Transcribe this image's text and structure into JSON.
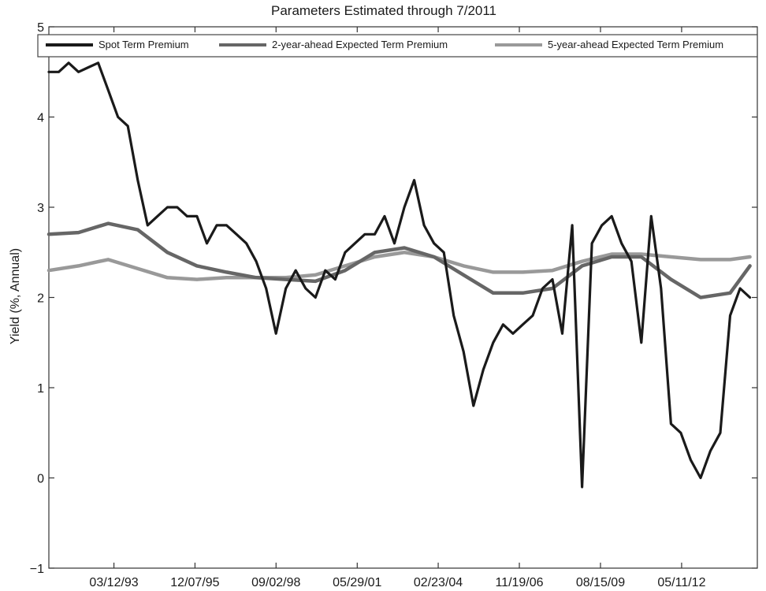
{
  "chart_data": {
    "type": "line",
    "title": "Parameters Estimated through 7/2011",
    "xlabel": "",
    "ylabel": "Yield (%, Annual)",
    "ylim": [
      -1,
      5
    ],
    "yticks": [
      -1,
      0,
      1,
      2,
      3,
      4,
      5
    ],
    "ytick_labels": [
      "−1",
      "0",
      "1",
      "2",
      "3",
      "4",
      "5"
    ],
    "xticks": [
      "03/12/93",
      "12/07/95",
      "09/02/98",
      "05/29/01",
      "02/23/04",
      "11/19/06",
      "08/15/09",
      "05/11/12"
    ],
    "xlim": [
      "01/1991",
      "12/2014"
    ],
    "grid": false,
    "legend_position": "top",
    "colors": {
      "spot": "#1a1a1a",
      "two_year": "#666666",
      "five_year": "#999999",
      "axis": "#333333"
    },
    "series": [
      {
        "name": "Spot Term Premium",
        "x": [
          "01/1991",
          "05/1991",
          "09/1991",
          "01/1992",
          "05/1992",
          "09/1992",
          "01/1993",
          "05/1993",
          "09/1993",
          "01/1994",
          "05/1994",
          "09/1994",
          "01/1995",
          "05/1995",
          "09/1995",
          "01/1996",
          "05/1996",
          "09/1996",
          "01/1997",
          "05/1997",
          "09/1997",
          "01/1998",
          "05/1998",
          "09/1998",
          "01/1999",
          "05/1999",
          "09/1999",
          "01/2000",
          "05/2000",
          "09/2000",
          "01/2001",
          "05/2001",
          "09/2001",
          "01/2002",
          "05/2002",
          "09/2002",
          "01/2003",
          "05/2003",
          "09/2003",
          "01/2004",
          "05/2004",
          "09/2004",
          "01/2005",
          "05/2005",
          "09/2005",
          "01/2006",
          "05/2006",
          "09/2006",
          "01/2007",
          "05/2007",
          "09/2007",
          "01/2008",
          "05/2008",
          "09/2008",
          "01/2009",
          "05/2009",
          "09/2009",
          "01/2010",
          "05/2010",
          "09/2010",
          "01/2011",
          "05/2011",
          "09/2011",
          "01/2012",
          "05/2012",
          "09/2012",
          "01/2013",
          "05/2013",
          "09/2013",
          "01/2014",
          "05/2014",
          "09/2014"
        ],
        "values": [
          4.5,
          4.5,
          4.6,
          4.5,
          4.55,
          4.6,
          4.3,
          4.0,
          3.9,
          3.3,
          2.8,
          2.9,
          3.0,
          3.0,
          2.9,
          2.9,
          2.6,
          2.8,
          2.8,
          2.7,
          2.6,
          2.4,
          2.1,
          1.6,
          2.1,
          2.3,
          2.1,
          2.0,
          2.3,
          2.2,
          2.5,
          2.6,
          2.7,
          2.7,
          2.9,
          2.6,
          3.0,
          3.3,
          2.8,
          2.6,
          2.5,
          1.8,
          1.4,
          0.8,
          1.2,
          1.5,
          1.7,
          1.6,
          1.7,
          1.8,
          2.1,
          2.2,
          1.6,
          2.8,
          -0.1,
          2.6,
          2.8,
          2.9,
          2.6,
          2.4,
          1.5,
          2.9,
          2.1,
          0.6,
          0.5,
          0.2,
          0.0,
          0.3,
          0.5,
          1.8,
          2.1,
          2.0
        ]
      },
      {
        "name": "2-year-ahead Expected Term Premium",
        "x": [
          "01/1991",
          "01/1992",
          "01/1993",
          "01/1994",
          "01/1995",
          "01/1996",
          "01/1997",
          "01/1998",
          "01/1999",
          "01/2000",
          "01/2001",
          "01/2002",
          "01/2003",
          "01/2004",
          "01/2005",
          "01/2006",
          "01/2007",
          "01/2008",
          "01/2009",
          "01/2010",
          "01/2011",
          "01/2012",
          "01/2013",
          "01/2014",
          "09/2014"
        ],
        "values": [
          2.7,
          2.72,
          2.82,
          2.75,
          2.5,
          2.35,
          2.28,
          2.22,
          2.2,
          2.18,
          2.3,
          2.5,
          2.55,
          2.45,
          2.25,
          2.05,
          2.05,
          2.1,
          2.35,
          2.45,
          2.45,
          2.2,
          2.0,
          2.05,
          2.35
        ]
      },
      {
        "name": "5-year-ahead Expected Term Premium",
        "x": [
          "01/1991",
          "01/1992",
          "01/1993",
          "01/1994",
          "01/1995",
          "01/1996",
          "01/1997",
          "01/1998",
          "01/1999",
          "01/2000",
          "01/2001",
          "01/2002",
          "01/2003",
          "01/2004",
          "01/2005",
          "01/2006",
          "01/2007",
          "01/2008",
          "01/2009",
          "01/2010",
          "01/2011",
          "01/2012",
          "01/2013",
          "01/2014",
          "09/2014"
        ],
        "values": [
          2.3,
          2.35,
          2.42,
          2.32,
          2.22,
          2.2,
          2.22,
          2.22,
          2.22,
          2.25,
          2.35,
          2.45,
          2.5,
          2.45,
          2.35,
          2.28,
          2.28,
          2.3,
          2.4,
          2.48,
          2.48,
          2.45,
          2.42,
          2.42,
          2.45
        ]
      }
    ]
  }
}
